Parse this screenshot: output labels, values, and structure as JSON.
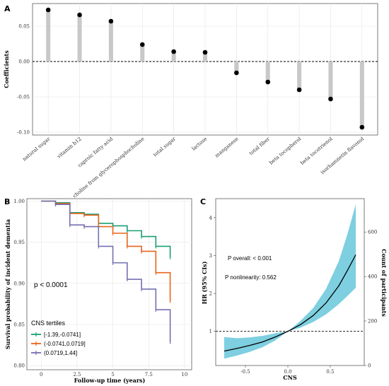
{
  "chart_data": [
    {
      "panel": "A",
      "type": "lollipop",
      "ylabel": "Coefficients",
      "ylim": [
        -0.1,
        0.08
      ],
      "yticks": [
        "0.05",
        "0.00",
        "-0.05",
        "-0.10"
      ],
      "ytick_values": [
        0.05,
        0,
        -0.05,
        -0.1
      ],
      "reference_line": 0,
      "categories": [
        "natural sugar",
        "vitamin b12",
        "caproic fatty acid",
        "choline from glycerophosphocholine",
        "total sugar",
        "lactose",
        "manganese",
        "total fiber",
        "beta tocopherol",
        "beta tocotrienol",
        "isorhamnetin flavonol"
      ],
      "values": [
        0.073,
        0.066,
        0.057,
        0.024,
        0.014,
        0.013,
        -0.016,
        -0.029,
        -0.04,
        -0.053,
        -0.093
      ],
      "stem_color": "#c8c8c8",
      "point_color": "#000000",
      "grid": true
    },
    {
      "panel": "B",
      "type": "step",
      "xlabel": "Follow-up time (years)",
      "ylabel": "Survival probability of incident dementia",
      "xlim": [
        -1,
        10.5
      ],
      "ylim": [
        0.795,
        1.003
      ],
      "xticks": [
        "0",
        "2.5",
        "5",
        "7.5",
        "10"
      ],
      "xtick_values": [
        0,
        2.5,
        5,
        7.5,
        10
      ],
      "yticks": [
        "1.00",
        "0.95",
        "0.90",
        "0.85",
        "0.80"
      ],
      "ytick_values": [
        1.0,
        0.95,
        0.9,
        0.85,
        0.8
      ],
      "pvalue_text": "p < 0.0001",
      "legend_title": "CNS tertiles",
      "legend_position": "bottom-left",
      "series": [
        {
          "name": "[-1.39,-0.0741]",
          "color": "#1a9e77",
          "x": [
            0,
            1,
            2,
            3,
            4,
            5,
            6,
            7,
            8,
            9
          ],
          "y": [
            1.0,
            0.998,
            0.986,
            0.984,
            0.973,
            0.97,
            0.964,
            0.957,
            0.945,
            0.932
          ]
        },
        {
          "name": "(-0.0741,0.0719]",
          "color": "#e8641b",
          "x": [
            0,
            1,
            2,
            3,
            4,
            5,
            6,
            7,
            8,
            9
          ],
          "y": [
            1.0,
            0.997,
            0.985,
            0.983,
            0.969,
            0.961,
            0.945,
            0.939,
            0.913,
            0.879
          ]
        },
        {
          "name": "(0.0719,1.44]",
          "color": "#7570b3",
          "x": [
            0,
            1,
            2,
            3,
            4,
            5,
            6,
            7,
            8,
            9
          ],
          "y": [
            1.0,
            0.996,
            0.971,
            0.969,
            0.945,
            0.925,
            0.905,
            0.893,
            0.868,
            0.829
          ]
        }
      ],
      "grid": true
    },
    {
      "panel": "C",
      "type": "line",
      "xlabel": "CNS",
      "ylabel": "HR (95% CIs)",
      "y2label": "Count of participants",
      "xlim": [
        -0.85,
        0.9
      ],
      "ylim": [
        0.1,
        4.5
      ],
      "xticks": [
        "-0.5",
        "0.0",
        "0.5"
      ],
      "xtick_values": [
        -0.5,
        0,
        0.5
      ],
      "yticks": [
        "1",
        "2",
        "3",
        "4"
      ],
      "ytick_values": [
        1,
        2,
        3,
        4
      ],
      "y2lim": [
        0,
        750
      ],
      "y2ticks": [
        "0",
        "200",
        "400",
        "600"
      ],
      "y2tick_values": [
        0,
        200,
        400,
        600
      ],
      "reference_line": 1,
      "p_overall": "P overall: < 0.001",
      "p_nonlinearity": "P nonlinearity: 0.562",
      "line_color": "#000000",
      "band_color": "#7ecfe0",
      "x": [
        -0.75,
        -0.6,
        -0.45,
        -0.3,
        -0.15,
        0,
        0.15,
        0.3,
        0.45,
        0.6,
        0.7,
        0.8
      ],
      "hr": [
        0.48,
        0.55,
        0.63,
        0.72,
        0.85,
        1.0,
        1.18,
        1.42,
        1.75,
        2.2,
        2.6,
        3.02
      ],
      "lower": [
        0.28,
        0.36,
        0.46,
        0.58,
        0.76,
        1.0,
        1.1,
        1.25,
        1.45,
        1.72,
        1.93,
        2.15
      ],
      "upper": [
        0.85,
        0.82,
        0.84,
        0.88,
        0.95,
        1.0,
        1.28,
        1.62,
        2.12,
        2.85,
        3.55,
        4.35
      ]
    }
  ]
}
